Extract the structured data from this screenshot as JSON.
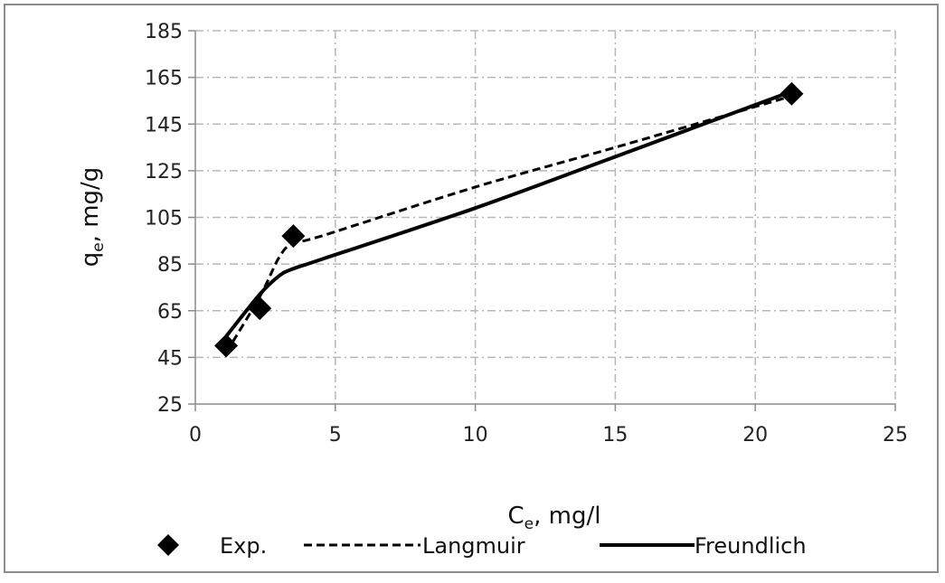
{
  "chart_data": {
    "type": "scatter",
    "xlabel": {
      "main": "C",
      "sub": "e",
      "rest": ", mg/l"
    },
    "ylabel": {
      "main": "q",
      "sub": "e",
      "rest": ", mg/g"
    },
    "xlim": [
      0,
      25
    ],
    "ylim": [
      25,
      185
    ],
    "xticks": [
      0,
      5,
      10,
      15,
      20,
      25
    ],
    "yticks": [
      25,
      45,
      65,
      85,
      105,
      125,
      145,
      165,
      185
    ],
    "grid": true,
    "legend_position": "bottom",
    "series": [
      {
        "name": "Exp.",
        "kind": "markers",
        "marker": "diamond",
        "color": "#000000",
        "points": [
          [
            1.1,
            50
          ],
          [
            2.3,
            66
          ],
          [
            3.5,
            97
          ],
          [
            21.3,
            158
          ]
        ]
      },
      {
        "name": "Langmuir",
        "kind": "line",
        "dash": "dashed",
        "color": "#000000",
        "points": [
          [
            1.1,
            47
          ],
          [
            2.3,
            71
          ],
          [
            3.0,
            88
          ],
          [
            3.5,
            94
          ],
          [
            4.5,
            97
          ],
          [
            10,
            118
          ],
          [
            15,
            135
          ],
          [
            21.3,
            157
          ]
        ]
      },
      {
        "name": "Freundlich",
        "kind": "line",
        "dash": "solid",
        "color": "#000000",
        "points": [
          [
            1.1,
            54
          ],
          [
            2.3,
            72
          ],
          [
            3.0,
            80
          ],
          [
            3.5,
            83
          ],
          [
            4.5,
            87
          ],
          [
            10,
            109
          ],
          [
            15,
            131
          ],
          [
            21.3,
            159
          ]
        ]
      }
    ]
  }
}
